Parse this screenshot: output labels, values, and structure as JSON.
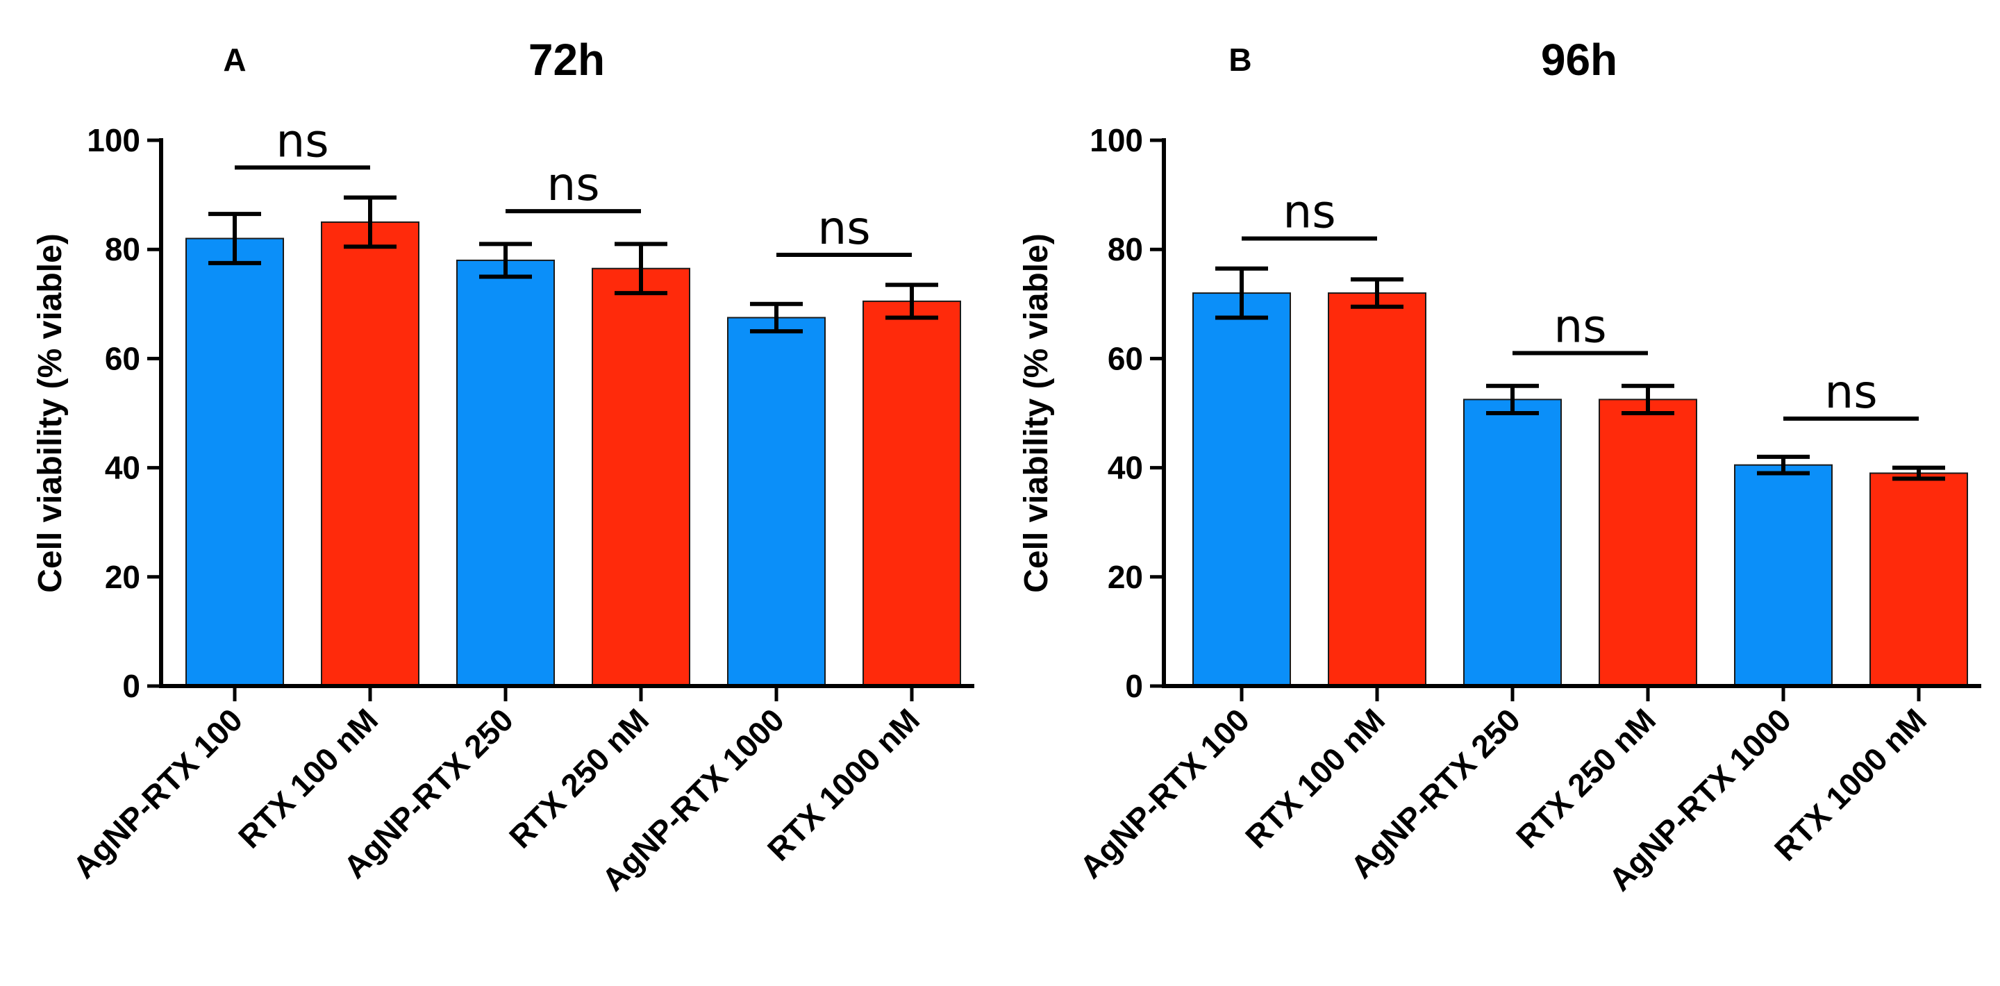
{
  "colors": {
    "agnp": "#0b8ff9",
    "rtx": "#ff2a0b"
  },
  "chart_data": [
    {
      "type": "bar",
      "panel_letter": "A",
      "title": "72h",
      "ylabel": "Cell viability (% viable)",
      "xlabel": "",
      "ylim": [
        0,
        100
      ],
      "yticks": [
        0,
        20,
        40,
        60,
        80,
        100
      ],
      "categories": [
        "AgNP-RTX 100",
        "RTX 100 nM",
        "AgNP-RTX 250",
        "RTX 250 nM",
        "AgNP-RTX 1000",
        "RTX 1000 nM"
      ],
      "values": [
        82,
        85,
        78,
        76.5,
        67.5,
        70.5
      ],
      "errors": [
        4.5,
        4.5,
        3,
        4.5,
        2.5,
        3
      ],
      "bar_colors": [
        "agnp",
        "rtx",
        "agnp",
        "rtx",
        "agnp",
        "rtx"
      ],
      "significance": [
        {
          "pair": [
            0,
            1
          ],
          "label": "ns",
          "y": 95
        },
        {
          "pair": [
            2,
            3
          ],
          "label": "ns",
          "y": 87
        },
        {
          "pair": [
            4,
            5
          ],
          "label": "ns",
          "y": 79
        }
      ]
    },
    {
      "type": "bar",
      "panel_letter": "B",
      "title": "96h",
      "ylabel": "Cell viability (% viable)",
      "xlabel": "",
      "ylim": [
        0,
        100
      ],
      "yticks": [
        0,
        20,
        40,
        60,
        80,
        100
      ],
      "categories": [
        "AgNP-RTX 100",
        "RTX 100 nM",
        "AgNP-RTX 250",
        "RTX 250 nM",
        "AgNP-RTX 1000",
        "RTX 1000 nM"
      ],
      "values": [
        72,
        72,
        52.5,
        52.5,
        40.5,
        39
      ],
      "errors": [
        4.5,
        2.5,
        2.5,
        2.5,
        1.5,
        1
      ],
      "bar_colors": [
        "agnp",
        "rtx",
        "agnp",
        "rtx",
        "agnp",
        "rtx"
      ],
      "significance": [
        {
          "pair": [
            0,
            1
          ],
          "label": "ns",
          "y": 82
        },
        {
          "pair": [
            2,
            3
          ],
          "label": "ns",
          "y": 61
        },
        {
          "pair": [
            4,
            5
          ],
          "label": "ns",
          "y": 49
        }
      ]
    }
  ]
}
